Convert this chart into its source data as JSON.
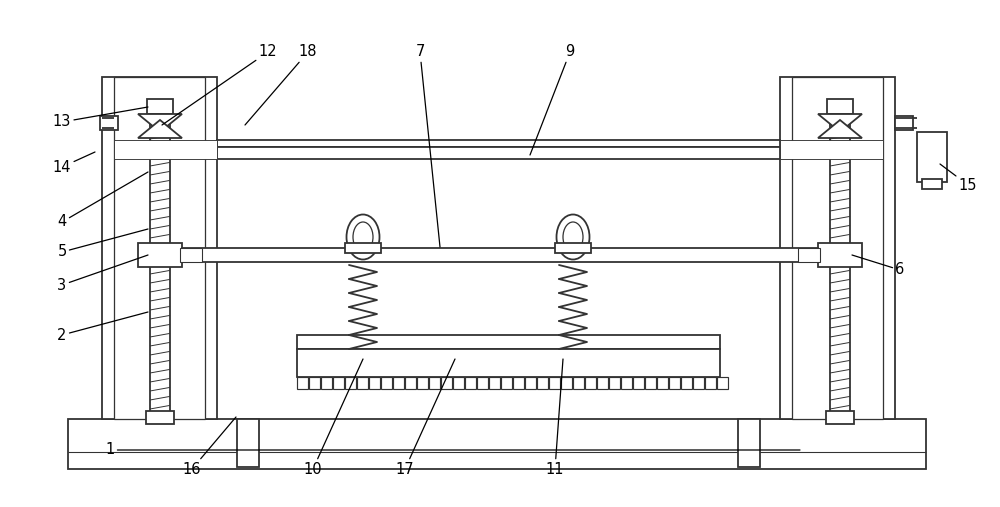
{
  "bg_color": "#ffffff",
  "lc": "#333333",
  "lw": 1.3,
  "lwt": 0.75,
  "fs": 10.5,
  "fig_w": 10.0,
  "fig_h": 5.07,
  "annotations": [
    [
      "1",
      800,
      57,
      110,
      57
    ],
    [
      "2",
      148,
      195,
      62,
      172
    ],
    [
      "3",
      148,
      252,
      62,
      222
    ],
    [
      "4",
      148,
      335,
      62,
      285
    ],
    [
      "5",
      148,
      278,
      62,
      255
    ],
    [
      "6",
      852,
      252,
      900,
      237
    ],
    [
      "7",
      440,
      260,
      420,
      455
    ],
    [
      "9",
      530,
      352,
      570,
      455
    ],
    [
      "10",
      363,
      148,
      313,
      38
    ],
    [
      "11",
      563,
      148,
      555,
      38
    ],
    [
      "12",
      162,
      382,
      268,
      455
    ],
    [
      "13",
      148,
      400,
      62,
      385
    ],
    [
      "14",
      95,
      355,
      62,
      340
    ],
    [
      "15",
      940,
      343,
      968,
      322
    ],
    [
      "16",
      236,
      90,
      192,
      38
    ],
    [
      "17",
      455,
      148,
      405,
      38
    ],
    [
      "18",
      245,
      382,
      308,
      455
    ]
  ]
}
